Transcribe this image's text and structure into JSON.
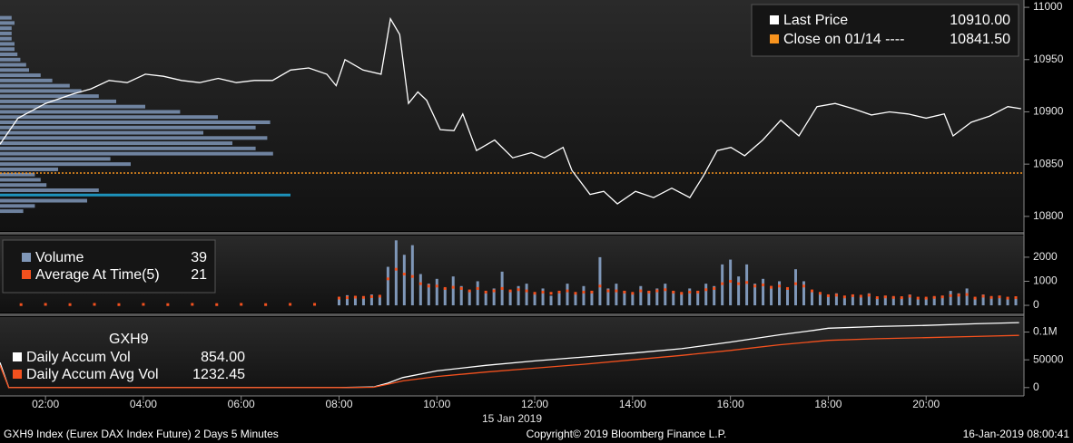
{
  "x_axis": {
    "xlim": [
      1.07,
      22
    ],
    "xticks": [
      {
        "value": 2,
        "label": "02:00"
      },
      {
        "value": 4,
        "label": "04:00"
      },
      {
        "value": 6,
        "label": "06:00"
      },
      {
        "value": 8,
        "label": "08:00"
      },
      {
        "value": 10,
        "label": "10:00"
      },
      {
        "value": 12,
        "label": "12:00"
      },
      {
        "value": 14,
        "label": "14:00"
      },
      {
        "value": 16,
        "label": "16:00"
      },
      {
        "value": 18,
        "label": "18:00"
      },
      {
        "value": 20,
        "label": "20:00"
      }
    ],
    "date_label": "15 Jan 2019"
  },
  "footer": {
    "left": "GXH9 Index (Eurex DAX Index Future) 2 Days 5 Minutes",
    "center": "Copyright© 2019 Bloomberg Finance L.P.",
    "right": "16-Jan-2019 08:00:41"
  },
  "chart_data": [
    {
      "type": "line",
      "ylim": [
        10786,
        11007
      ],
      "yticks": [
        10800,
        10850,
        10900,
        10950,
        11000
      ],
      "series": [
        {
          "name": "Last Price",
          "color": "#ffffff",
          "legend_value_label": "10910.00",
          "x": [
            1.07,
            1.44,
            2.0,
            2.56,
            2.93,
            3.3,
            3.67,
            4.04,
            4.41,
            4.78,
            5.15,
            5.53,
            5.9,
            6.27,
            6.64,
            7.01,
            7.38,
            7.75,
            7.94,
            8.12,
            8.49,
            8.86,
            9.05,
            9.24,
            9.42,
            9.61,
            9.79,
            10.07,
            10.35,
            10.53,
            10.81,
            11.18,
            11.55,
            11.93,
            12.2,
            12.58,
            12.76,
            13.13,
            13.41,
            13.69,
            14.06,
            14.43,
            14.8,
            15.17,
            15.45,
            15.73,
            16.01,
            16.29,
            16.66,
            17.03,
            17.4,
            17.77,
            18.14,
            18.51,
            18.88,
            19.25,
            19.63,
            20.0,
            20.37,
            20.55,
            20.92,
            21.3,
            21.67,
            21.94
          ],
          "values": [
            10869,
            10894,
            10908,
            10917,
            10922,
            10930,
            10928,
            10936,
            10934,
            10930,
            10928,
            10932,
            10928,
            10930,
            10930,
            10940,
            10942,
            10936,
            10925,
            10950,
            10940,
            10936,
            10989,
            10974,
            10908,
            10919,
            10911,
            10883,
            10882,
            10898,
            10863,
            10873,
            10856,
            10861,
            10856,
            10866,
            10844,
            10821,
            10824,
            10812,
            10824,
            10818,
            10827,
            10818,
            10839,
            10863,
            10866,
            10858,
            10873,
            10892,
            10877,
            10905,
            10908,
            10903,
            10897,
            10900,
            10898,
            10894,
            10898,
            10877,
            10890,
            10896,
            10905,
            10903
          ]
        }
      ],
      "reference_line": {
        "name": "Close on 01/14 ----",
        "value": 10841.5,
        "value_label": "10841.50",
        "color": "#f7931e"
      },
      "volume_profile": {
        "color": "#7f97b8",
        "highlight_color": "#1fa8d8",
        "highlight_level": 10820,
        "levels": [
          10805,
          10810,
          10815,
          10820,
          10825,
          10830,
          10835,
          10840,
          10845,
          10850,
          10855,
          10860,
          10865,
          10870,
          10875,
          10880,
          10885,
          10890,
          10895,
          10900,
          10905,
          10910,
          10915,
          10920,
          10925,
          10930,
          10935,
          10940,
          10945,
          10950,
          10955,
          10960,
          10965,
          10970,
          10975,
          10980,
          10985,
          10990
        ],
        "values": [
          8,
          12,
          30,
          100,
          34,
          16,
          14,
          12,
          20,
          45,
          38,
          94,
          88,
          80,
          92,
          70,
          88,
          93,
          75,
          62,
          50,
          40,
          34,
          28,
          24,
          18,
          14,
          10,
          9,
          7,
          6,
          5,
          5,
          4,
          4,
          4,
          5,
          4
        ]
      }
    },
    {
      "type": "bar",
      "ylim": [
        -300,
        2900
      ],
      "yticks": [
        0,
        1000,
        2000
      ],
      "series": [
        {
          "name": "Volume",
          "color": "#7f97b8",
          "legend_value": 39,
          "x": [
            1.5,
            2,
            2.5,
            3,
            3.5,
            4,
            4.5,
            5,
            5.5,
            6,
            6.5,
            7,
            7.5,
            8.0,
            8.1667,
            8.3333,
            8.5,
            8.6667,
            8.8333,
            9.0,
            9.1667,
            9.3333,
            9.5,
            9.6667,
            9.8333,
            10.0,
            10.1667,
            10.3333,
            10.5,
            10.6667,
            10.8333,
            11.0,
            11.1667,
            11.3333,
            11.5,
            11.6667,
            11.8333,
            12.0,
            12.1667,
            12.3333,
            12.5,
            12.6667,
            12.8333,
            13.0,
            13.1667,
            13.3333,
            13.5,
            13.6667,
            13.8333,
            14.0,
            14.1667,
            14.3333,
            14.5,
            14.6667,
            14.8333,
            15.0,
            15.1667,
            15.3333,
            15.5,
            15.6667,
            15.8333,
            16.0,
            16.1667,
            16.3333,
            16.5,
            16.6667,
            16.8333,
            17.0,
            17.1667,
            17.3333,
            17.5,
            17.6667,
            17.8333,
            18.0,
            18.1667,
            18.3333,
            18.5,
            18.6667,
            18.8333,
            19.0,
            19.1667,
            19.3333,
            19.5,
            19.6667,
            19.8333,
            20.0,
            20.1667,
            20.3333,
            20.5,
            20.6667,
            20.8333,
            21.0,
            21.1667,
            21.3333,
            21.5,
            21.6667,
            21.8333
          ],
          "values": [
            10,
            10,
            10,
            10,
            10,
            10,
            10,
            10,
            10,
            10,
            10,
            10,
            10,
            350,
            420,
            380,
            300,
            450,
            400,
            1600,
            2700,
            2100,
            2500,
            1300,
            900,
            1100,
            700,
            1200,
            800,
            600,
            1000,
            500,
            700,
            1400,
            600,
            800,
            900,
            500,
            700,
            400,
            600,
            900,
            500,
            800,
            600,
            2000,
            700,
            900,
            600,
            500,
            800,
            600,
            700,
            900,
            600,
            500,
            700,
            600,
            900,
            800,
            1700,
            1900,
            1200,
            1700,
            900,
            1100,
            800,
            1000,
            700,
            1500,
            1000,
            600,
            500,
            400,
            500,
            300,
            450,
            350,
            500,
            300,
            400,
            350,
            300,
            450,
            250,
            300,
            350,
            400,
            600,
            500,
            700,
            300,
            450,
            350,
            400,
            300,
            350
          ]
        },
        {
          "name": "Average At Time(5)",
          "color": "#f4511e",
          "legend_value": 21,
          "marker": "dot",
          "x": [
            1.5,
            2,
            2.5,
            3,
            3.5,
            4,
            4.5,
            5,
            5.5,
            6,
            6.5,
            7,
            7.5,
            8.0,
            8.1667,
            8.3333,
            8.5,
            8.6667,
            8.8333,
            9.0,
            9.1667,
            9.3333,
            9.5,
            9.6667,
            9.8333,
            10.0,
            10.1667,
            10.3333,
            10.5,
            10.6667,
            10.8333,
            11.0,
            11.1667,
            11.3333,
            11.5,
            11.6667,
            11.8333,
            12.0,
            12.1667,
            12.3333,
            12.5,
            12.6667,
            12.8333,
            13.0,
            13.1667,
            13.3333,
            13.5,
            13.6667,
            13.8333,
            14.0,
            14.1667,
            14.3333,
            14.5,
            14.6667,
            14.8333,
            15.0,
            15.1667,
            15.3333,
            15.5,
            15.6667,
            15.8333,
            16.0,
            16.1667,
            16.3333,
            16.5,
            16.6667,
            16.8333,
            17.0,
            17.1667,
            17.3333,
            17.5,
            17.6667,
            17.8333,
            18.0,
            18.1667,
            18.3333,
            18.5,
            18.6667,
            18.8333,
            19.0,
            19.1667,
            19.3333,
            19.5,
            19.6667,
            19.8333,
            20.0,
            20.1667,
            20.3333,
            20.5,
            20.6667,
            20.8333,
            21.0,
            21.1667,
            21.3333,
            21.5,
            21.6667,
            21.8333
          ],
          "values": [
            30,
            40,
            30,
            40,
            30,
            40,
            30,
            40,
            30,
            40,
            30,
            40,
            40,
            300,
            320,
            340,
            330,
            360,
            380,
            1100,
            1500,
            1300,
            1200,
            900,
            800,
            800,
            700,
            750,
            700,
            600,
            700,
            550,
            600,
            700,
            600,
            650,
            600,
            500,
            550,
            500,
            550,
            600,
            500,
            550,
            550,
            800,
            600,
            600,
            550,
            500,
            600,
            550,
            600,
            650,
            550,
            500,
            550,
            550,
            650,
            700,
            900,
            1000,
            900,
            950,
            800,
            850,
            750,
            800,
            700,
            900,
            800,
            600,
            500,
            400,
            420,
            350,
            400,
            380,
            420,
            320,
            350,
            330,
            320,
            380,
            300,
            300,
            330,
            350,
            400,
            420,
            450,
            300,
            380,
            330,
            350,
            300,
            320
          ]
        }
      ]
    },
    {
      "type": "line",
      "title": "GXH9",
      "ylim": [
        -15000,
        127000
      ],
      "yticks": [
        0,
        50000,
        {
          "value": 100000,
          "label": "0.1M"
        }
      ],
      "series": [
        {
          "name": "Daily Accum Vol",
          "color": "#ffffff",
          "legend_value_label": "854.00",
          "x": [
            1.07,
            1.25,
            8.0,
            8.7,
            9.0,
            9.3,
            10,
            11,
            12,
            13,
            14,
            15,
            16,
            17,
            17.7,
            18,
            19,
            20,
            21,
            21.9
          ],
          "values": [
            45000,
            0,
            0,
            1000,
            8000,
            18000,
            30000,
            40000,
            48000,
            55000,
            62000,
            70000,
            82000,
            95000,
            103000,
            107000,
            110000,
            112000,
            115000,
            117000
          ]
        },
        {
          "name": "Daily Accum Avg Vol",
          "color": "#f4511e",
          "legend_value_label": "1232.45",
          "x": [
            1.07,
            1.25,
            8.0,
            8.7,
            9.0,
            9.3,
            10,
            11,
            12,
            13,
            14,
            15,
            16,
            17,
            18,
            19,
            20,
            21,
            21.9
          ],
          "values": [
            40000,
            0,
            0,
            500,
            6000,
            12000,
            20000,
            28000,
            35000,
            42000,
            50000,
            58000,
            67000,
            77000,
            85000,
            88000,
            90000,
            92000,
            94000
          ]
        }
      ]
    }
  ]
}
